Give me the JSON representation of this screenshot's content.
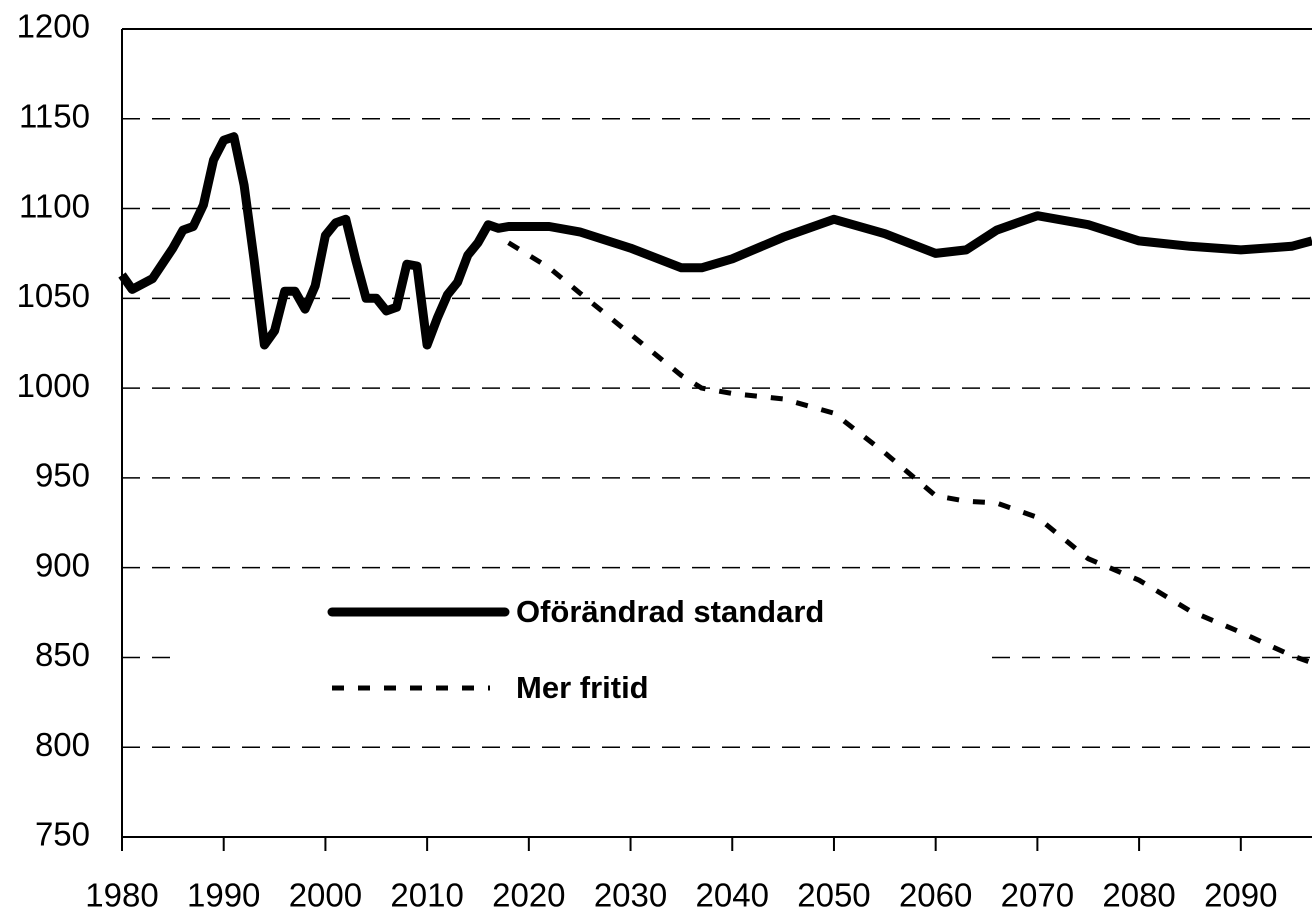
{
  "chart_data": {
    "type": "line",
    "x": [
      1980,
      1981,
      1983,
      1985,
      1986,
      1987,
      1988,
      1989,
      1990,
      1991,
      1992,
      1993,
      1994,
      1995,
      1996,
      1997,
      1998,
      1999,
      2000,
      2001,
      2002,
      2003,
      2004,
      2005,
      2006,
      2007,
      2008,
      2009,
      2010,
      2011,
      2012,
      2013,
      2014,
      2015,
      2016,
      2017,
      2018,
      2020,
      2022,
      2025,
      2030,
      2035,
      2037,
      2040,
      2045,
      2050,
      2055,
      2060,
      2063,
      2066,
      2070,
      2075,
      2080,
      2085,
      2090,
      2095,
      2097
    ],
    "series": [
      {
        "name": "Oförändrad standard",
        "color": "#000000",
        "style": "solid",
        "values": [
          1063,
          1055,
          1061,
          1078,
          1088,
          1090,
          1102,
          1127,
          1138,
          1140,
          1113,
          1071,
          1024,
          1032,
          1054,
          1054,
          1044,
          1057,
          1085,
          1092,
          1094,
          1071,
          1050,
          1050,
          1043,
          1045,
          1069,
          1068,
          1024,
          1039,
          1052,
          1059,
          1074,
          1081,
          1091,
          1089,
          1090,
          1090,
          1090,
          1087,
          1078,
          1067,
          1067,
          1072,
          1084,
          1094,
          1086,
          1075,
          1077,
          1088,
          1096,
          1091,
          1082,
          1079,
          1077,
          1079,
          1082
        ]
      },
      {
        "name": "Mer fritid",
        "color": "#000000",
        "style": "dashed",
        "values": [
          null,
          null,
          null,
          null,
          null,
          null,
          null,
          null,
          null,
          null,
          null,
          null,
          null,
          null,
          null,
          null,
          null,
          null,
          null,
          null,
          null,
          null,
          null,
          null,
          null,
          null,
          null,
          null,
          null,
          null,
          null,
          null,
          null,
          null,
          null,
          null,
          1081,
          1074,
          1067,
          1053,
          1030,
          1007,
          1000,
          997,
          994,
          986,
          964,
          940,
          937,
          936,
          928,
          905,
          893,
          876,
          864,
          851,
          847
        ]
      }
    ],
    "xlim": [
      1980,
      2097
    ],
    "xticks": [
      1980,
      1990,
      2000,
      2010,
      2020,
      2030,
      2040,
      2050,
      2060,
      2070,
      2080,
      2090
    ],
    "ylim": [
      750,
      1200
    ],
    "yticks": [
      750,
      800,
      850,
      900,
      950,
      1000,
      1050,
      1100,
      1150,
      1200
    ],
    "grid": true
  }
}
